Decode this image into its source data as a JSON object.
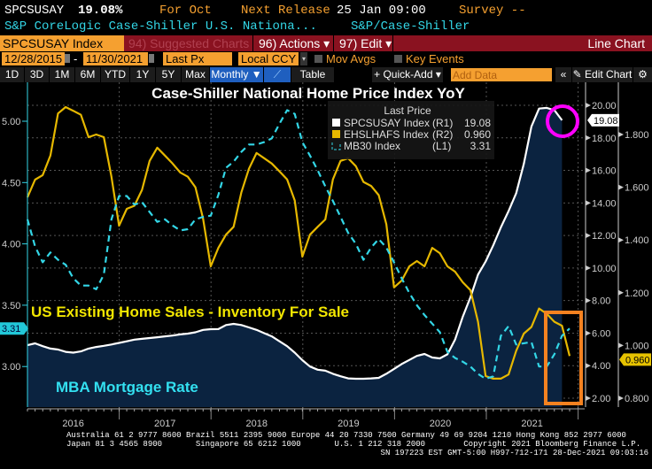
{
  "header": {
    "ticker": "SPCSUSAY",
    "last_value": "19.08%",
    "period": "For Oct",
    "next_release_label": "Next Release",
    "next_release_value": "25 Jan 09:00",
    "survey": "Survey --",
    "description": "S&P CoreLogic Case-Shiller U.S. Nationa...",
    "source": "S&P/Case-Shiller"
  },
  "menu": {
    "security": "SPCSUSAY Index",
    "suggested": "94) Suggested Charts",
    "actions": "96) Actions ▾",
    "edit": "97) Edit ▾",
    "chart_type": "Line Chart"
  },
  "controls": {
    "start_date": "12/28/2015",
    "end_date": "11/30/2021",
    "dash": "-",
    "price": "Last Px",
    "currency": "Local CCY",
    "mov_avgs": "Mov Avgs",
    "key_events": "Key Events"
  },
  "toolbar": {
    "periods": [
      "1D",
      "3D",
      "1M",
      "6M",
      "YTD",
      "1Y",
      "5Y",
      "Max"
    ],
    "frequency": "Monthly ▼",
    "table": "Table",
    "quick_add": "+ Quick-Add ▾",
    "add_data_placeholder": "Add Data",
    "collapse": "«",
    "edit_chart": "✎ Edit Chart",
    "settings": "⚙"
  },
  "footer": {
    "line1": "Australia 61 2 9777 8600 Brazil 5511 2395 9000 Europe 44 20 7330 7500 Germany 49 69 9204 1210 Hong Kong 852 2977 6000",
    "line2": "Japan 81 3 4565 8900       Singapore 65 6212 1000       U.S. 1 212 318 2000        Copyright 2021 Bloomberg Finance L.P.",
    "line3": "SN 197223 EST  GMT-5:00 H997-712-171 28-Dec-2021 09:03:16"
  },
  "chart_data": {
    "type": "line",
    "title": "Case-Shiller National Home Price Index YoY",
    "annotations": [
      "US Existing Home Sales - Inventory For Sale",
      "MBA Mortgage Rate"
    ],
    "legend": {
      "header": "Last Price",
      "placement": "top-center",
      "entries": [
        {
          "name": "SPCSUSAY Index",
          "axis": "(R1)",
          "last": "19.08",
          "color": "#ffffff"
        },
        {
          "name": "EHSLHAFS Index",
          "axis": "(R2)",
          "last": "0.960",
          "color": "#e6b800"
        },
        {
          "name": "MB30 Index",
          "axis": "(L1)",
          "last": "3.31",
          "color": "#33d6e6"
        }
      ]
    },
    "x_start": "2015-12",
    "frequency": "monthly",
    "x_tick_labels": [
      "2016",
      "2017",
      "2018",
      "2019",
      "2020",
      "2021"
    ],
    "grid": true,
    "axes": {
      "L1": {
        "range": [
          2.75,
          5.3
        ],
        "ticks": [
          "5.00",
          "4.50",
          "4.00",
          "3.50",
          "3.00"
        ],
        "last_tag": "3.31"
      },
      "R1": {
        "range": [
          1.5,
          20.5
        ],
        "ticks": [
          "20.00",
          "18.00",
          "16.00",
          "14.00",
          "12.00",
          "10.00",
          "8.00",
          "6.00",
          "4.00",
          "2.00"
        ],
        "last_tag": "19.08"
      },
      "R2": {
        "range": [
          0.78,
          1.9
        ],
        "ticks": [
          "1.800",
          "1.600",
          "1.400",
          "1.200",
          "1.000",
          "0.800"
        ],
        "last_tag": "0.960"
      }
    },
    "series": [
      {
        "name": "SPCSUSAY Index",
        "axis": "R1",
        "style": "line+area",
        "color": "#ffffff",
        "area_color": "#0b2340",
        "values": [
          5.26,
          5.37,
          5.2,
          5.05,
          4.99,
          4.85,
          4.8,
          4.88,
          5.05,
          5.15,
          5.22,
          5.3,
          5.4,
          5.5,
          5.6,
          5.65,
          5.7,
          5.75,
          5.8,
          5.85,
          5.92,
          5.97,
          6.05,
          6.2,
          6.24,
          6.25,
          6.5,
          6.57,
          6.5,
          6.35,
          6.2,
          6.0,
          5.8,
          5.5,
          5.2,
          4.8,
          4.34,
          3.95,
          3.75,
          3.69,
          3.5,
          3.35,
          3.22,
          3.2,
          3.2,
          3.22,
          3.25,
          3.5,
          3.8,
          4.1,
          4.35,
          4.6,
          4.72,
          4.5,
          4.45,
          4.7,
          5.6,
          7.0,
          8.2,
          9.6,
          10.4,
          11.4,
          12.5,
          13.5,
          14.6,
          16.4,
          18.7,
          19.8,
          19.84,
          19.7,
          19.08
        ]
      },
      {
        "name": "EHSLHAFS Index",
        "axis": "R2",
        "style": "line",
        "color": "#e6b800",
        "values": [
          1.562,
          1.629,
          1.646,
          1.72,
          1.88,
          1.904,
          1.89,
          1.875,
          1.79,
          1.8,
          1.79,
          1.64,
          1.454,
          1.518,
          1.53,
          1.59,
          1.7,
          1.75,
          1.72,
          1.69,
          1.656,
          1.64,
          1.6,
          1.48,
          1.3,
          1.37,
          1.42,
          1.45,
          1.58,
          1.67,
          1.73,
          1.71,
          1.69,
          1.66,
          1.63,
          1.55,
          1.337,
          1.42,
          1.45,
          1.478,
          1.63,
          1.7,
          1.71,
          1.68,
          1.62,
          1.605,
          1.57,
          1.46,
          1.22,
          1.246,
          1.3,
          1.32,
          1.3,
          1.37,
          1.35,
          1.3,
          1.28,
          1.24,
          1.21,
          1.09,
          0.884,
          0.874,
          0.874,
          0.89,
          0.98,
          1.045,
          1.07,
          1.14,
          1.12,
          1.09,
          1.075,
          0.96
        ]
      },
      {
        "name": "MB30 Index",
        "axis": "L1",
        "style": "dashed",
        "color": "#33d6e6",
        "values": [
          4.2,
          3.98,
          3.85,
          3.93,
          3.87,
          3.83,
          3.72,
          3.66,
          3.66,
          3.63,
          3.75,
          4.2,
          4.39,
          4.39,
          4.32,
          4.34,
          4.26,
          4.18,
          4.2,
          4.15,
          4.11,
          4.12,
          4.2,
          4.22,
          4.23,
          4.4,
          4.62,
          4.67,
          4.75,
          4.81,
          4.81,
          4.83,
          4.86,
          4.98,
          5.09,
          5.06,
          4.83,
          4.72,
          4.6,
          4.47,
          4.35,
          4.22,
          4.09,
          4.0,
          3.87,
          3.97,
          4.04,
          3.97,
          3.85,
          3.72,
          3.6,
          3.5,
          3.42,
          3.35,
          3.28,
          3.12,
          3.07,
          3.04,
          3.0,
          2.94,
          2.9,
          2.92,
          3.25,
          3.33,
          3.18,
          3.19,
          3.2,
          3.0,
          3.0,
          3.1,
          3.25,
          3.31
        ]
      }
    ],
    "highlights": [
      {
        "shape": "circle",
        "color": "#ff00ff",
        "target": "SPCSUSAY Index latest"
      },
      {
        "shape": "rectangle",
        "color": "#f58220",
        "target": "EHSLHAFS / MB30 latest months"
      }
    ]
  }
}
